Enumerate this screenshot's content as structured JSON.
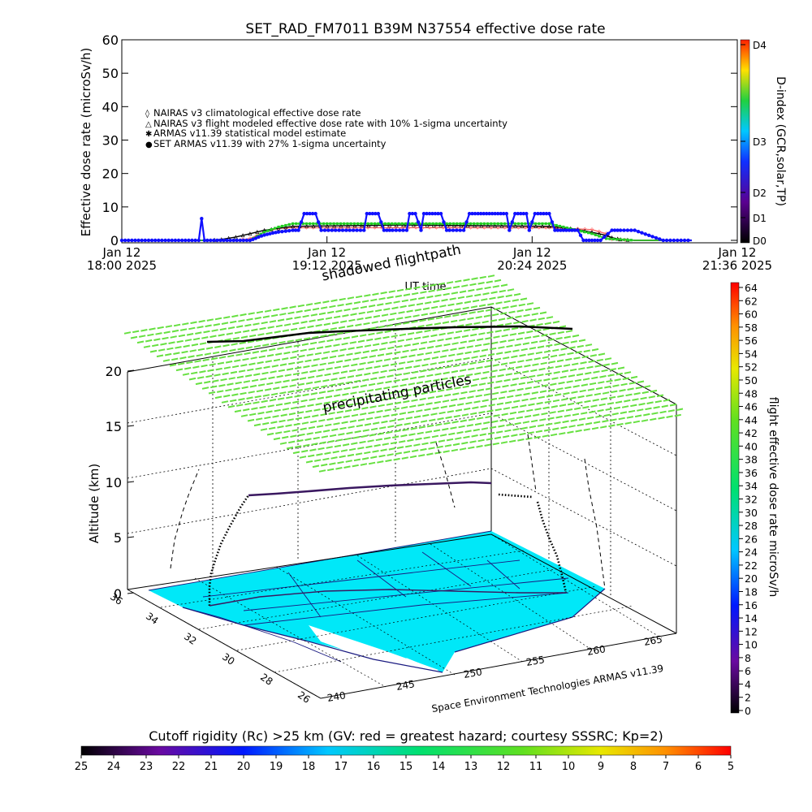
{
  "title": "SET_RAD_FM7011   B39M N37554 effective dose rate",
  "colors": {
    "nairas_clim": "#ff6a6a",
    "nairas_flight": "#000000",
    "armas_stat": "#22cc22",
    "set_armas": "#1010ff",
    "land": "#00e8f8",
    "precip": "#66e040"
  },
  "chart_data": [
    {
      "type": "line",
      "title": "SET_RAD_FM7011   B39M N37554 effective dose rate",
      "xlabel": "UT time",
      "ylabel": "Effective dose rate (microSv/h)",
      "ylim": [
        0,
        60
      ],
      "y_ticks": [
        "0",
        "10",
        "20",
        "30",
        "40",
        "50",
        "60"
      ],
      "x_ticks": [
        {
          "line1": "Jan 12",
          "line2": "18:00 2025",
          "t": 0
        },
        {
          "line1": "Jan 12",
          "line2": "19:12 2025",
          "t": 72
        },
        {
          "line1": "Jan 12",
          "line2": "20:24 2025",
          "t": 144
        },
        {
          "line1": "Jan 12",
          "line2": "21:36 2025",
          "t": 216
        }
      ],
      "x_unit": "minutes after Jan 12 18:00 2025",
      "legend": [
        {
          "symbol": "◊",
          "label": "NAIRAS v3 climatological effective dose rate",
          "color": "#ff6a6a"
        },
        {
          "symbol": "△",
          "label": "NAIRAS v3 flight modeled effective dose rate with 10% 1-sigma uncertainty",
          "color": "#000000"
        },
        {
          "symbol": "✱",
          "label": "ARMAS v11.39 statistical model estimate",
          "color": "#22cc22"
        },
        {
          "symbol": "●",
          "label": "SET ARMAS v11.39 with 27% 1-sigma uncertainty",
          "color": "#1010ff"
        }
      ],
      "legend_position": "upper-left",
      "series": [
        {
          "name": "NAIRAS v3 climatological effective dose rate",
          "x": [
            0,
            30,
            40,
            45,
            50,
            55,
            60,
            150,
            155,
            160,
            165,
            170,
            172,
            180,
            200
          ],
          "y": [
            0,
            0,
            0,
            0.5,
            2.5,
            3.6,
            3.8,
            3.8,
            3.6,
            3.4,
            3.2,
            2.0,
            0.3,
            0,
            0
          ]
        },
        {
          "name": "NAIRAS v3 flight modeled effective dose rate with 10% 1-sigma uncertainty",
          "x": [
            0,
            30,
            35,
            40,
            45,
            50,
            55,
            60,
            100,
            150,
            155,
            160,
            165,
            170,
            172,
            175,
            180,
            200
          ],
          "y": [
            0,
            0,
            0.3,
            1.0,
            2.0,
            3.0,
            3.6,
            4.2,
            4.6,
            4.2,
            3.8,
            3.2,
            2.4,
            1.5,
            0.8,
            0.3,
            0,
            0
          ]
        },
        {
          "name": "ARMAS v11.39 statistical model estimate",
          "x": [
            0,
            30,
            45,
            50,
            55,
            60,
            150,
            155,
            160,
            165,
            170,
            180,
            200
          ],
          "y": [
            0,
            0,
            0,
            2.5,
            4.0,
            5.0,
            5.0,
            4.0,
            3.0,
            2.0,
            0.5,
            0,
            0
          ]
        },
        {
          "name": "SET ARMAS v11.39 with 27% 1-sigma uncertainty",
          "x": [
            0,
            27,
            28,
            29,
            30,
            45,
            46,
            47,
            48,
            49,
            50,
            51,
            52,
            53,
            55,
            60,
            62,
            64,
            66,
            68,
            70,
            75,
            80,
            85,
            86,
            88,
            90,
            92,
            94,
            95,
            100,
            101,
            103,
            105,
            106,
            108,
            110,
            112,
            114,
            115,
            120,
            122,
            125,
            128,
            130,
            132,
            135,
            136,
            138,
            140,
            142,
            143,
            145,
            148,
            150,
            152,
            155,
            156,
            158,
            160,
            162,
            165,
            168,
            172,
            175,
            180,
            190,
            200
          ],
          "y": [
            0,
            0,
            6.5,
            0,
            0,
            0,
            0.3,
            0.6,
            1,
            1.3,
            1.6,
            1.8,
            2,
            2.2,
            2.5,
            3,
            3,
            8,
            8,
            8,
            3,
            3,
            3,
            3,
            8,
            8,
            8,
            3,
            3,
            3,
            3,
            8,
            8,
            3,
            8,
            8,
            8,
            8,
            3,
            3,
            3,
            8,
            8,
            8,
            8,
            8,
            8,
            3,
            8,
            8,
            8,
            3,
            8,
            8,
            8,
            3,
            3,
            3,
            3,
            3,
            0,
            0,
            0,
            3,
            3,
            3,
            0,
            0
          ]
        }
      ]
    },
    {
      "type": "scatter",
      "title": "shadowed flightpath",
      "annotation": "precipitating particles",
      "zlabel": "Altitude (km)",
      "z_ticks": [
        "0",
        "5",
        "10",
        "15",
        "20"
      ],
      "lat_ticks": [
        "36",
        "34",
        "32",
        "30",
        "28",
        "26"
      ],
      "lon_ticks": [
        "240",
        "245",
        "250",
        "255",
        "260",
        "265"
      ],
      "credit": "Space Environment Technologies ARMAS v11.39",
      "right_colorbar_label": "flight effective dose rate microSv/h",
      "right_colorbar_ticks": [
        "0",
        "2",
        "4",
        "6",
        "8",
        "10",
        "12",
        "14",
        "16",
        "18",
        "20",
        "22",
        "24",
        "26",
        "28",
        "30",
        "32",
        "34",
        "36",
        "38",
        "40",
        "42",
        "44",
        "46",
        "48",
        "50",
        "52",
        "54",
        "56",
        "58",
        "60",
        "62",
        "64"
      ]
    }
  ],
  "dindex": {
    "label": "D-index (GCR,solar,TP)",
    "ticks": [
      "D0",
      "D1",
      "D2",
      "D3",
      "D4"
    ]
  },
  "cutoff": {
    "label": "Cutoff rigidity (Rc) >25 km (GV: red = greatest hazard; courtesy SSSRC; Kp=2)",
    "ticks": [
      "25",
      "24",
      "23",
      "22",
      "21",
      "20",
      "19",
      "18",
      "17",
      "16",
      "15",
      "14",
      "13",
      "12",
      "11",
      "10",
      "9",
      "8",
      "7",
      "6",
      "5"
    ]
  }
}
